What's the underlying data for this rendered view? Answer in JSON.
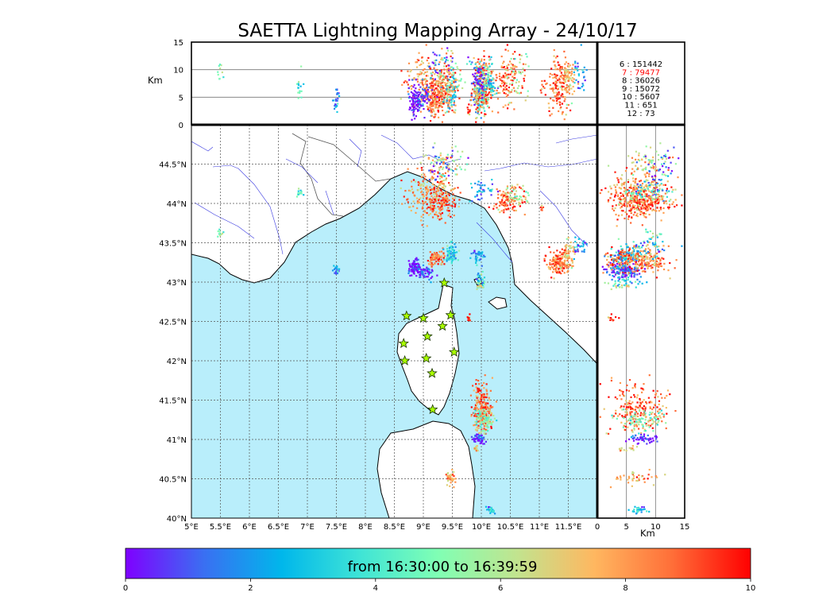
{
  "chart_data": {
    "type": "scatter",
    "title": "SAETTA Lightning Mapping Array - 24/10/17",
    "colorbar": {
      "label": "from 16:30:00 to 16:39:59",
      "ticks": [
        "0",
        "2",
        "4",
        "6",
        "8",
        "10"
      ],
      "range": [
        0,
        10
      ],
      "colors": [
        "#7f00ff",
        "#3a6ff2",
        "#00b7eb",
        "#3fe4d6",
        "#80ffb4",
        "#c1e48f",
        "#ffb760",
        "#ff6e38",
        "#ff0000"
      ]
    },
    "map": {
      "lon_range": [
        5,
        12
      ],
      "lat_range": [
        40,
        45
      ],
      "lon_ticks": [
        "5°E",
        "5.5°E",
        "6°E",
        "6.5°E",
        "7°E",
        "7.5°E",
        "8°E",
        "8.5°E",
        "9°E",
        "9.5°E",
        "10°E",
        "10.5°E",
        "11°E",
        "11.5°E"
      ],
      "lat_ticks": [
        "40°N",
        "40.5°N",
        "41°N",
        "41.5°N",
        "42°N",
        "42.5°N",
        "43°N",
        "43.5°N",
        "44°N",
        "44.5°N"
      ],
      "sea_color": "#b9eefb",
      "grid": true
    },
    "altitude_panels": {
      "ylabel": "Km",
      "xlabel": "Km",
      "ticks": [
        "0",
        "5",
        "10",
        "15"
      ]
    },
    "stations": [
      {
        "lon": 9.36,
        "lat": 42.99
      },
      {
        "lon": 8.71,
        "lat": 42.57
      },
      {
        "lon": 9.0,
        "lat": 42.54
      },
      {
        "lon": 9.47,
        "lat": 42.58
      },
      {
        "lon": 9.33,
        "lat": 42.44
      },
      {
        "lon": 9.07,
        "lat": 42.31
      },
      {
        "lon": 8.66,
        "lat": 42.22
      },
      {
        "lon": 9.53,
        "lat": 42.11
      },
      {
        "lon": 9.05,
        "lat": 42.03
      },
      {
        "lon": 8.68,
        "lat": 42.0
      },
      {
        "lon": 9.15,
        "lat": 41.84
      },
      {
        "lon": 9.16,
        "lat": 41.38
      }
    ],
    "station_counts": [
      {
        "label": "6 :  151442",
        "color": "#000000"
      },
      {
        "label": "7 :   79477",
        "color": "#ff0000"
      },
      {
        "label": "8 :   36026",
        "color": "#000000"
      },
      {
        "label": "9 :   15072",
        "color": "#000000"
      },
      {
        "label": "10 :    5607",
        "color": "#000000"
      },
      {
        "label": "11 :     651",
        "color": "#000000"
      },
      {
        "label": "12 :      73",
        "color": "#000000"
      }
    ],
    "clusters": [
      {
        "lon": 9.1,
        "lat": 44.15,
        "alt": 7.5,
        "t": 8.2,
        "n": 220,
        "slon": 0.2,
        "slat": 0.18,
        "salt": 2.5
      },
      {
        "lon": 9.3,
        "lat": 44.0,
        "alt": 6.0,
        "t": 9.0,
        "n": 110,
        "slon": 0.12,
        "slat": 0.1,
        "salt": 2
      },
      {
        "lon": 9.4,
        "lat": 44.5,
        "alt": 9.0,
        "t": 6.5,
        "n": 60,
        "slon": 0.15,
        "slat": 0.12,
        "salt": 2
      },
      {
        "lon": 9.35,
        "lat": 44.45,
        "alt": 11.0,
        "t": 0.3,
        "n": 30,
        "slon": 0.15,
        "slat": 0.1,
        "salt": 1.5
      },
      {
        "lon": 10.0,
        "lat": 44.18,
        "alt": 9.5,
        "t": 2.0,
        "n": 40,
        "slon": 0.1,
        "slat": 0.08,
        "salt": 2
      },
      {
        "lon": 10.47,
        "lat": 44.03,
        "alt": 8.0,
        "t": 8.8,
        "n": 110,
        "slon": 0.14,
        "slat": 0.08,
        "salt": 2.5
      },
      {
        "lon": 10.6,
        "lat": 44.1,
        "alt": 9.0,
        "t": 6.0,
        "n": 40,
        "slon": 0.1,
        "slat": 0.06,
        "salt": 2
      },
      {
        "lon": 8.85,
        "lat": 43.18,
        "alt": 4.5,
        "t": 0.3,
        "n": 90,
        "slon": 0.06,
        "slat": 0.05,
        "salt": 1.5
      },
      {
        "lon": 9.05,
        "lat": 43.12,
        "alt": 5.0,
        "t": 0.5,
        "n": 50,
        "slon": 0.07,
        "slat": 0.04,
        "salt": 1.5
      },
      {
        "lon": 9.2,
        "lat": 43.3,
        "alt": 4.5,
        "t": 8.8,
        "n": 80,
        "slon": 0.08,
        "slat": 0.04,
        "salt": 1.5
      },
      {
        "lon": 9.49,
        "lat": 43.35,
        "alt": 5.5,
        "t": 3.3,
        "n": 70,
        "slon": 0.05,
        "slat": 0.08,
        "salt": 2
      },
      {
        "lon": 9.94,
        "lat": 43.33,
        "alt": 5.0,
        "t": 2.0,
        "n": 35,
        "slon": 0.05,
        "slat": 0.05,
        "salt": 1.5
      },
      {
        "lon": 9.97,
        "lat": 43.02,
        "alt": 5.0,
        "t": 3.0,
        "n": 35,
        "slon": 0.05,
        "slat": 0.05,
        "salt": 1.5
      },
      {
        "lon": 10.0,
        "lat": 42.95,
        "alt": 4.0,
        "t": 6.0,
        "n": 15,
        "slon": 0.04,
        "slat": 0.03,
        "salt": 1
      },
      {
        "lon": 11.33,
        "lat": 43.25,
        "alt": 7.5,
        "t": 8.8,
        "n": 140,
        "slon": 0.1,
        "slat": 0.08,
        "salt": 2.5
      },
      {
        "lon": 11.5,
        "lat": 43.35,
        "alt": 8.5,
        "t": 7.5,
        "n": 70,
        "slon": 0.06,
        "slat": 0.08,
        "salt": 2
      },
      {
        "lon": 11.7,
        "lat": 43.45,
        "alt": 9.0,
        "t": 2.2,
        "n": 30,
        "slon": 0.06,
        "slat": 0.06,
        "salt": 2
      },
      {
        "lon": 10.0,
        "lat": 41.4,
        "alt": 7.0,
        "t": 8.8,
        "n": 200,
        "slon": 0.09,
        "slat": 0.15,
        "salt": 2.5
      },
      {
        "lon": 10.05,
        "lat": 41.25,
        "alt": 7.5,
        "t": 5.2,
        "n": 90,
        "slon": 0.1,
        "slat": 0.07,
        "salt": 2
      },
      {
        "lon": 9.95,
        "lat": 41.0,
        "alt": 8.0,
        "t": 0.3,
        "n": 50,
        "slon": 0.06,
        "slat": 0.03,
        "salt": 1.5
      },
      {
        "lon": 9.9,
        "lat": 40.88,
        "alt": 5.0,
        "t": 7.5,
        "n": 15,
        "slon": 0.02,
        "slat": 0.02,
        "salt": 1
      },
      {
        "lon": 9.47,
        "lat": 40.52,
        "alt": 6.5,
        "t": 8.0,
        "n": 40,
        "slon": 0.04,
        "slat": 0.05,
        "salt": 2
      },
      {
        "lon": 10.15,
        "lat": 40.1,
        "alt": 7.0,
        "t": 2.5,
        "n": 30,
        "slon": 0.04,
        "slat": 0.02,
        "salt": 1
      },
      {
        "lon": 9.78,
        "lat": 42.55,
        "alt": 2.5,
        "t": 9.5,
        "n": 10,
        "slon": 0.015,
        "slat": 0.015,
        "salt": 0.5
      },
      {
        "lon": 7.5,
        "lat": 43.15,
        "alt": 4.0,
        "t": 2.0,
        "n": 25,
        "slon": 0.03,
        "slat": 0.03,
        "salt": 1.5
      },
      {
        "lon": 6.85,
        "lat": 44.12,
        "alt": 7.0,
        "t": 4.0,
        "n": 15,
        "slon": 0.03,
        "slat": 0.03,
        "salt": 1.5
      },
      {
        "lon": 5.5,
        "lat": 43.62,
        "alt": 9.0,
        "t": 5.0,
        "n": 10,
        "slon": 0.04,
        "slat": 0.03,
        "salt": 1
      },
      {
        "lon": 11.05,
        "lat": 43.93,
        "alt": 7.0,
        "t": 8.5,
        "n": 6,
        "slon": 0.02,
        "slat": 0.02,
        "salt": 1
      }
    ]
  }
}
